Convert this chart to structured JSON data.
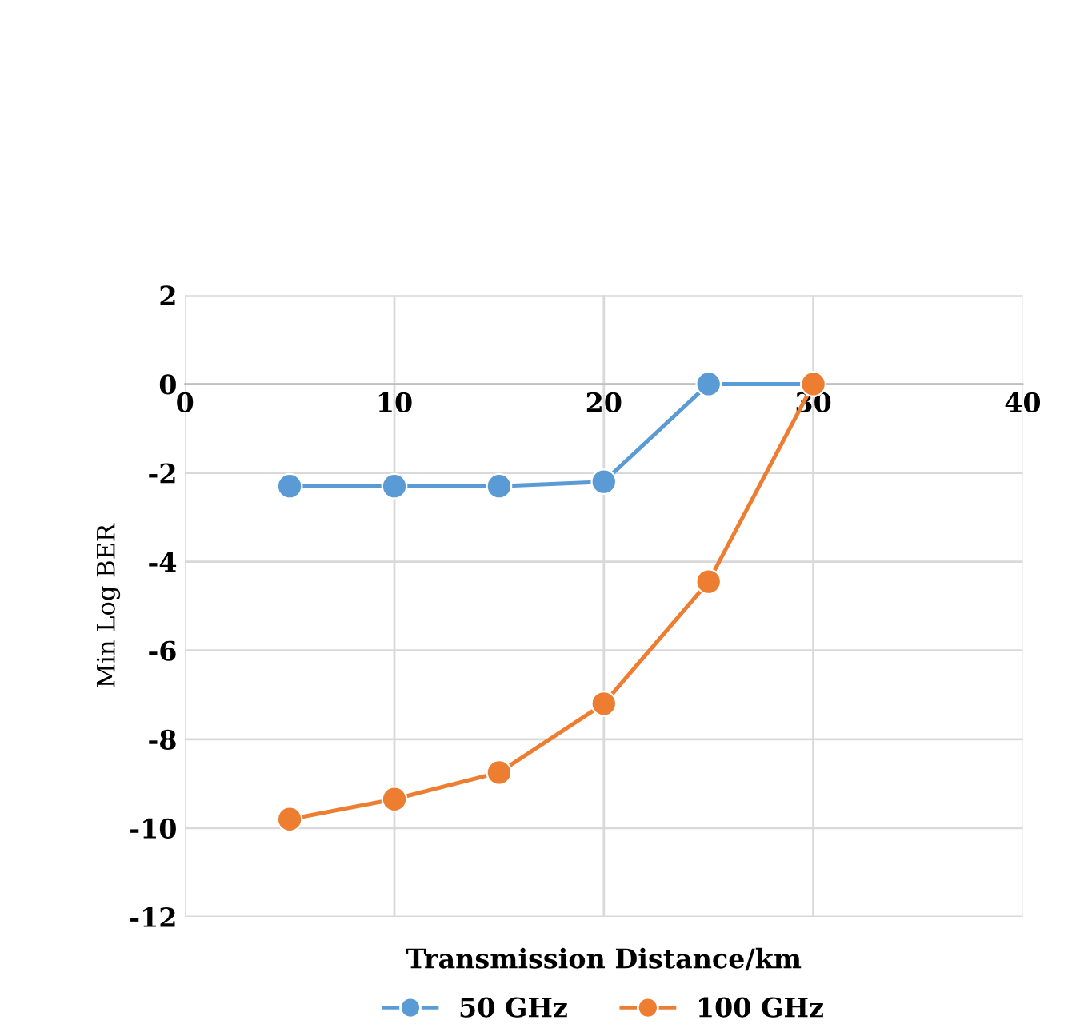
{
  "chart_data": {
    "type": "line",
    "xlabel": "Transmission Distance/km",
    "ylabel": "Min Log BER",
    "x": [
      5,
      10,
      15,
      20,
      25,
      30
    ],
    "series": [
      {
        "name": "50 GHz",
        "color": "#5b9bd5",
        "values": [
          -2.3,
          -2.3,
          -2.3,
          -2.2,
          0,
          0
        ]
      },
      {
        "name": "100 GHz",
        "color": "#ed7d31",
        "values": [
          -9.8,
          -9.35,
          -8.75,
          -7.2,
          -4.45,
          0
        ]
      }
    ],
    "xlim": [
      0,
      40
    ],
    "xticks": [
      0,
      10,
      20,
      30,
      40
    ],
    "ylim": [
      -12,
      2
    ],
    "yticks": [
      -12,
      -10,
      -8,
      -6,
      -4,
      -2,
      0,
      2
    ],
    "grid": true,
    "legend": "bottom",
    "marker": "circle",
    "line_style": "solid"
  }
}
